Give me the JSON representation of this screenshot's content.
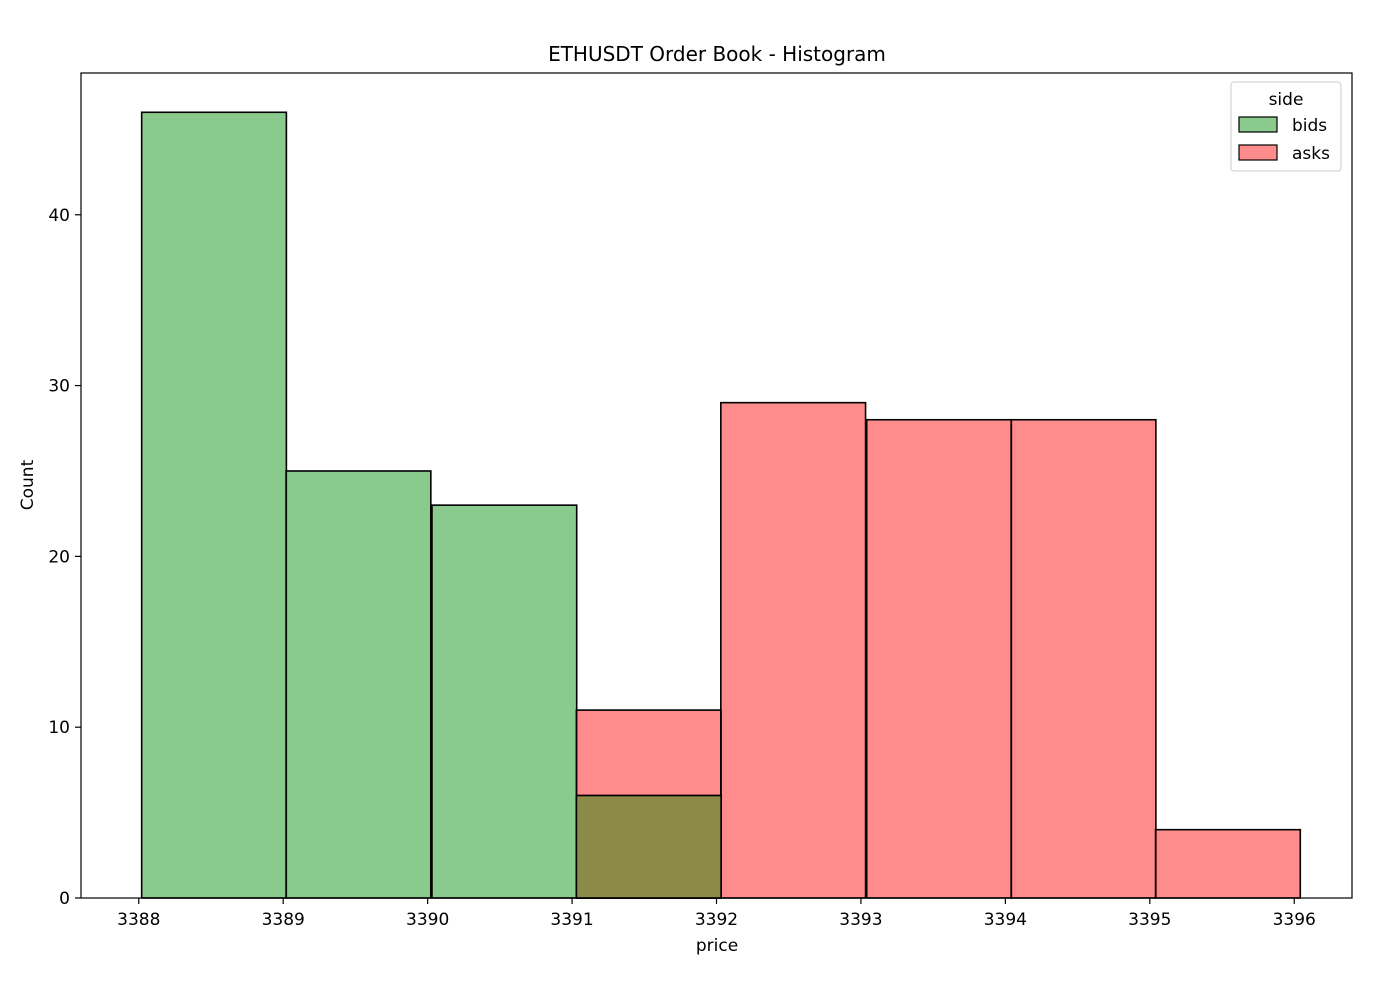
{
  "chart_data": {
    "type": "bar",
    "title": "ETHUSDT Order Book - Histogram",
    "xlabel": "price",
    "ylabel": "Count",
    "xlim": [
      3387.6,
      3396.4
    ],
    "ylim": [
      0,
      48.3
    ],
    "xticks": [
      "3388",
      "3389",
      "3390",
      "3391",
      "3392",
      "3393",
      "3394",
      "3395",
      "3396"
    ],
    "yticks": [
      "0",
      "10",
      "20",
      "30",
      "40"
    ],
    "grid": false,
    "legend": {
      "title": "side",
      "placement": "top-right"
    },
    "bin_width": 1.002,
    "series": [
      {
        "name": "bids",
        "color": "#4caf50",
        "bins": [
          {
            "start": 3388.02,
            "count": 46
          },
          {
            "start": 3389.02,
            "count": 25
          },
          {
            "start": 3390.03,
            "count": 23
          },
          {
            "start": 3391.03,
            "count": 6
          }
        ]
      },
      {
        "name": "asks",
        "color": "#ff1a1a",
        "bins": [
          {
            "start": 3391.03,
            "count": 11
          },
          {
            "start": 3392.03,
            "count": 29
          },
          {
            "start": 3393.04,
            "count": 28
          },
          {
            "start": 3394.04,
            "count": 28
          },
          {
            "start": 3395.04,
            "count": 4
          }
        ]
      }
    ],
    "overlap_color": "#8b8b47"
  }
}
